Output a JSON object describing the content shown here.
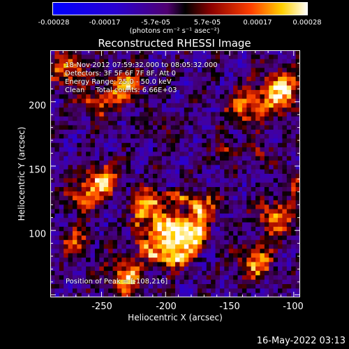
{
  "colorbar": {
    "ticks": [
      "-0.00028",
      "-0.00017",
      "-5.7e-05",
      "5.7e-05",
      "0.00017",
      "0.00028"
    ],
    "units": "(photons cm⁻² s⁻¹ asec⁻²)"
  },
  "chart_data": {
    "type": "heatmap",
    "title": "Reconstructed RHESSI Image",
    "xlabel": "Heliocentric X (arcsec)",
    "ylabel": "Heliocentric Y (arcsec)",
    "xlim": [
      -290,
      -95
    ],
    "ylim": [
      48,
      240
    ],
    "xticks": [
      "-250",
      "-200",
      "-150",
      "-100"
    ],
    "yticks": [
      "200",
      "150",
      "100"
    ],
    "clim": [
      -0.00028,
      0.00028
    ],
    "annotations": [
      "18-Nov-2012 07:59:32.000 to 08:05:32.000",
      "Detectors: 3F 5F 6F 7F 8F, Att 0",
      "Energy Range: 25.0 - 50.0 keV",
      "Clean     Total counts: 6.66E+03"
    ],
    "peak": "Position of Peak = [-108,216]"
  },
  "footer": {
    "date": "16-May-2022 03:13"
  }
}
